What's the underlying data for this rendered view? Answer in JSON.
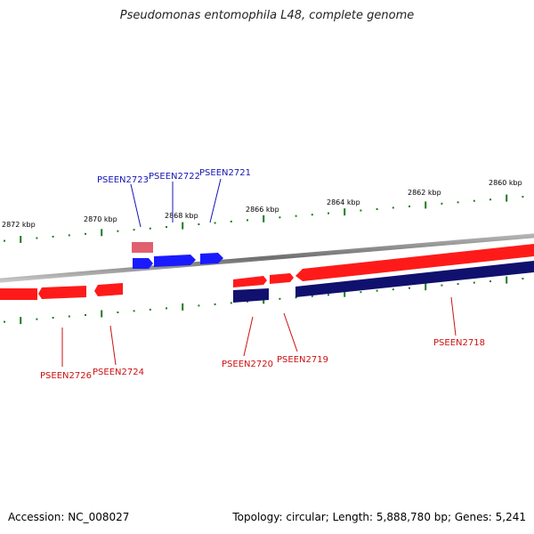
{
  "title": "Pseudomonas entomophila L48, complete genome",
  "footer": {
    "accession": "Accession: NC_008027",
    "topology": "Topology: circular; Length: 5,888,780 bp; Genes: 5,241"
  },
  "scale_labels": [
    "2872 kbp",
    "2870 kbp",
    "2868 kbp",
    "2866 kbp",
    "2864 kbp",
    "2862 kbp",
    "2860 kbp"
  ],
  "genes_forward": [
    "PSEEN2723",
    "PSEEN2722",
    "PSEEN2721"
  ],
  "genes_reverse": [
    "PSEEN2726",
    "PSEEN2724",
    "PSEEN2720",
    "PSEEN2719",
    "PSEEN2718"
  ],
  "colors": {
    "forward_gene": "#1a1aff",
    "reverse_gene": "#ff1a1a",
    "forward_label": "#1515b5",
    "reverse_label": "#cc1010",
    "tick": "#1e7a1e",
    "backbone": "#888888",
    "cds_navy": "#10106e",
    "pseudo_pink": "#e06070"
  }
}
